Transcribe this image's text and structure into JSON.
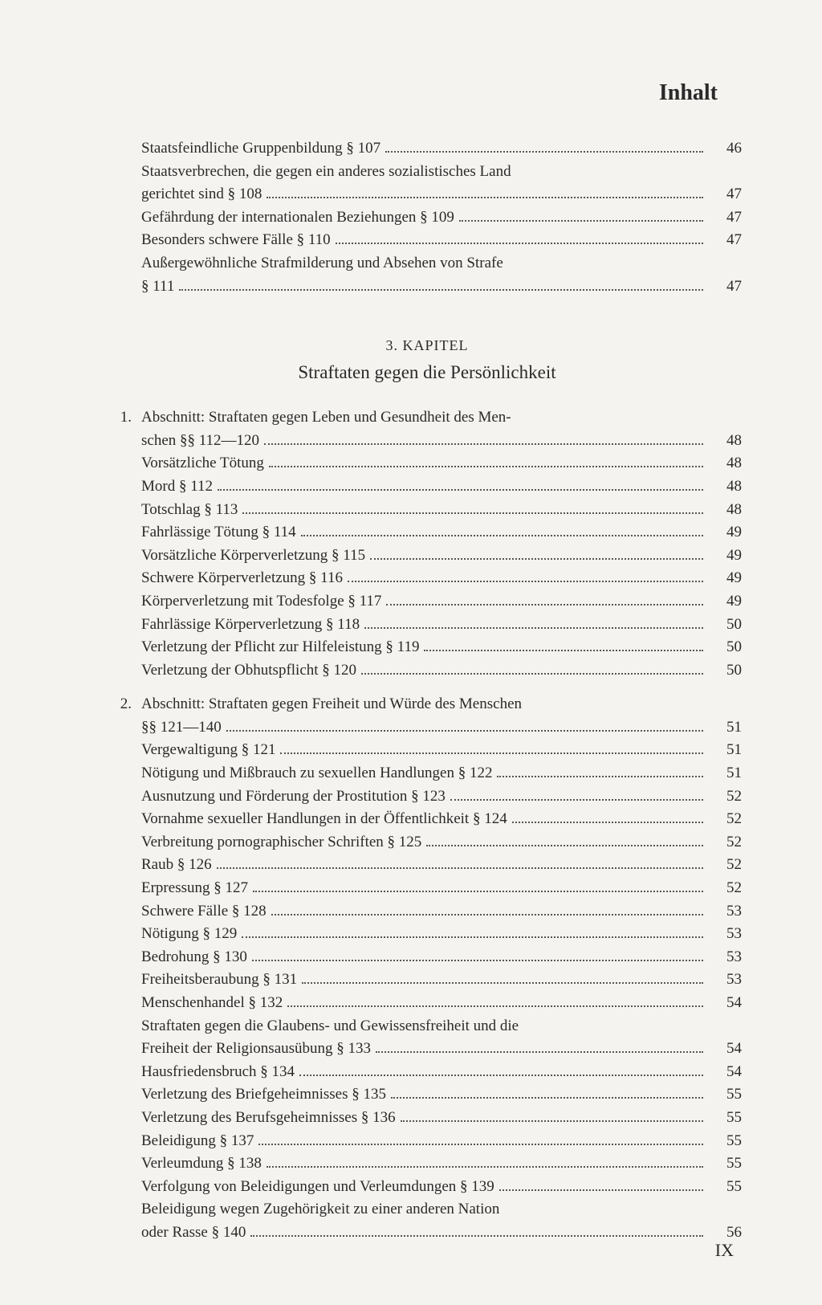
{
  "header": "Inhalt",
  "chapter": {
    "number": "3. KAPITEL",
    "title": "Straftaten gegen die Persönlichkeit"
  },
  "block1": [
    {
      "text": "Staatsfeindliche Gruppenbildung § 107",
      "page": "46",
      "indent": true
    },
    {
      "text": "Staatsverbrechen, die gegen ein anderes sozialistisches Land",
      "page": "",
      "indent": true,
      "nopage": true
    },
    {
      "text": "gerichtet sind § 108",
      "page": "47",
      "indent": true
    },
    {
      "text": "Gefährdung der internationalen Beziehungen § 109",
      "page": "47",
      "indent": true
    },
    {
      "text": "Besonders schwere Fälle § 110",
      "page": "47",
      "indent": true
    },
    {
      "text": "Außergewöhnliche Strafmilderung und Absehen von Strafe",
      "page": "",
      "indent": true,
      "nopage": true
    },
    {
      "text": "§ 111",
      "page": "47",
      "indent": true
    }
  ],
  "sections": [
    {
      "num": "1.",
      "entries": [
        {
          "text": "Abschnitt: Straftaten gegen Leben und Gesundheit des Men-",
          "page": "",
          "first": true,
          "nopage": true
        },
        {
          "text": "schen §§ 112—120",
          "page": "48"
        },
        {
          "text": "Vorsätzliche Tötung",
          "page": "48"
        },
        {
          "text": "Mord § 112",
          "page": "48"
        },
        {
          "text": "Totschlag § 113",
          "page": "48"
        },
        {
          "text": "Fahrlässige Tötung § 114",
          "page": "49"
        },
        {
          "text": "Vorsätzliche Körperverletzung § 115",
          "page": "49"
        },
        {
          "text": "Schwere Körperverletzung § 116",
          "page": "49"
        },
        {
          "text": "Körperverletzung mit Todesfolge § 117",
          "page": "49"
        },
        {
          "text": "Fahrlässige Körperverletzung § 118",
          "page": "50"
        },
        {
          "text": "Verletzung der Pflicht zur Hilfeleistung § 119",
          "page": "50"
        },
        {
          "text": "Verletzung der Obhutspflicht § 120",
          "page": "50"
        }
      ]
    },
    {
      "num": "2.",
      "entries": [
        {
          "text": "Abschnitt: Straftaten gegen Freiheit und Würde des Menschen",
          "page": "",
          "first": true,
          "nopage": true
        },
        {
          "text": "§§ 121—140",
          "page": "51"
        },
        {
          "text": "Vergewaltigung § 121",
          "page": "51"
        },
        {
          "text": "Nötigung und Mißbrauch zu sexuellen Handlungen § 122",
          "page": "51"
        },
        {
          "text": "Ausnutzung und Förderung der Prostitution § 123",
          "page": "52"
        },
        {
          "text": "Vornahme sexueller Handlungen in der Öffentlichkeit § 124",
          "page": "52",
          "shortdots": true
        },
        {
          "text": "Verbreitung pornographischer Schriften § 125",
          "page": "52"
        },
        {
          "text": "Raub § 126",
          "page": "52"
        },
        {
          "text": "Erpressung § 127",
          "page": "52"
        },
        {
          "text": "Schwere Fälle § 128",
          "page": "53"
        },
        {
          "text": "Nötigung § 129",
          "page": "53"
        },
        {
          "text": "Bedrohung § 130",
          "page": "53"
        },
        {
          "text": "Freiheitsberaubung § 131",
          "page": "53"
        },
        {
          "text": "Menschenhandel § 132",
          "page": "54"
        },
        {
          "text": "Straftaten gegen die Glaubens- und Gewissensfreiheit und die",
          "page": "",
          "nopage": true
        },
        {
          "text": "Freiheit der Religionsausübung § 133",
          "page": "54"
        },
        {
          "text": "Hausfriedensbruch § 134",
          "page": "54"
        },
        {
          "text": "Verletzung des Briefgeheimnisses § 135",
          "page": "55"
        },
        {
          "text": "Verletzung des Berufsgeheimnisses § 136",
          "page": "55"
        },
        {
          "text": "Beleidigung § 137",
          "page": "55"
        },
        {
          "text": "Verleumdung § 138",
          "page": "55"
        },
        {
          "text": "Verfolgung von Beleidigungen und Verleumdungen § 139",
          "page": "55"
        },
        {
          "text": "Beleidigung wegen Zugehörigkeit zu einer anderen Nation",
          "page": "",
          "nopage": true
        },
        {
          "text": "oder Rasse § 140",
          "page": "56"
        }
      ]
    }
  ],
  "footer": "IX"
}
